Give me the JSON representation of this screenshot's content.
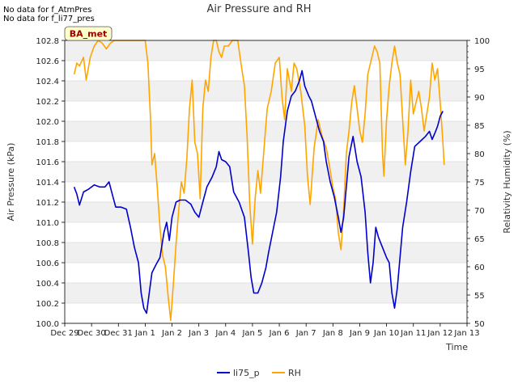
{
  "notes": [
    "No data for f_AtmPres",
    "No data for f_li77_pres"
  ],
  "chart_data": {
    "type": "line",
    "title": "Air Pressure and RH",
    "badge": "BA_met",
    "xlabel": "Time",
    "ylabel_left": "Air Pressure (kPa)",
    "ylabel_right": "Relativity Humidity (%)",
    "x_ticks": [
      "Dec 29",
      "Dec 30",
      "Dec 31",
      "Jan 1",
      "Jan 2",
      "Jan 3",
      "Jan 4",
      "Jan 5",
      "Jan 6",
      "Jan 7",
      "Jan 8",
      "Jan 9",
      "Jan 10",
      "Jan 11",
      "Jan 12",
      "Jan 13"
    ],
    "x_range": [
      0,
      15
    ],
    "ylim_left": [
      100.0,
      102.8
    ],
    "y_ticks_left": [
      "100.0",
      "100.2",
      "100.4",
      "100.6",
      "100.8",
      "101.0",
      "101.2",
      "101.4",
      "101.6",
      "101.8",
      "102.0",
      "102.2",
      "102.4",
      "102.6",
      "102.8"
    ],
    "ylim_right": [
      50,
      100
    ],
    "y_ticks_right": [
      "50",
      "55",
      "60",
      "65",
      "70",
      "75",
      "80",
      "85",
      "90",
      "95",
      "100"
    ],
    "grid": "horizontal bands",
    "legend_placement": "bottom-center",
    "series": [
      {
        "name": "li75_p",
        "axis": "left",
        "color": "#0000cc",
        "points": [
          [
            0.35,
            101.35
          ],
          [
            0.45,
            101.28
          ],
          [
            0.55,
            101.17
          ],
          [
            0.7,
            101.3
          ],
          [
            0.9,
            101.33
          ],
          [
            1.1,
            101.37
          ],
          [
            1.3,
            101.35
          ],
          [
            1.5,
            101.35
          ],
          [
            1.65,
            101.4
          ],
          [
            1.8,
            101.25
          ],
          [
            1.9,
            101.15
          ],
          [
            2.1,
            101.15
          ],
          [
            2.3,
            101.13
          ],
          [
            2.45,
            100.95
          ],
          [
            2.6,
            100.75
          ],
          [
            2.75,
            100.6
          ],
          [
            2.85,
            100.3
          ],
          [
            2.95,
            100.15
          ],
          [
            3.05,
            100.1
          ],
          [
            3.15,
            100.3
          ],
          [
            3.25,
            100.5
          ],
          [
            3.4,
            100.58
          ],
          [
            3.55,
            100.65
          ],
          [
            3.7,
            100.9
          ],
          [
            3.8,
            101.0
          ],
          [
            3.9,
            100.82
          ],
          [
            4.0,
            101.05
          ],
          [
            4.15,
            101.2
          ],
          [
            4.3,
            101.22
          ],
          [
            4.5,
            101.22
          ],
          [
            4.7,
            101.18
          ],
          [
            4.85,
            101.1
          ],
          [
            5.0,
            101.05
          ],
          [
            5.15,
            101.2
          ],
          [
            5.3,
            101.35
          ],
          [
            5.5,
            101.45
          ],
          [
            5.65,
            101.55
          ],
          [
            5.75,
            101.7
          ],
          [
            5.85,
            101.62
          ],
          [
            6.0,
            101.6
          ],
          [
            6.15,
            101.55
          ],
          [
            6.3,
            101.3
          ],
          [
            6.5,
            101.2
          ],
          [
            6.7,
            101.05
          ],
          [
            6.85,
            100.7
          ],
          [
            6.95,
            100.45
          ],
          [
            7.05,
            100.3
          ],
          [
            7.2,
            100.3
          ],
          [
            7.35,
            100.4
          ],
          [
            7.5,
            100.55
          ],
          [
            7.6,
            100.7
          ],
          [
            7.75,
            100.9
          ],
          [
            7.9,
            101.1
          ],
          [
            8.05,
            101.45
          ],
          [
            8.15,
            101.8
          ],
          [
            8.3,
            102.1
          ],
          [
            8.45,
            102.25
          ],
          [
            8.6,
            102.3
          ],
          [
            8.75,
            102.4
          ],
          [
            8.85,
            102.5
          ],
          [
            8.95,
            102.35
          ],
          [
            9.1,
            102.25
          ],
          [
            9.2,
            102.2
          ],
          [
            9.35,
            102.05
          ],
          [
            9.5,
            101.9
          ],
          [
            9.65,
            101.8
          ],
          [
            9.75,
            101.6
          ],
          [
            9.9,
            101.4
          ],
          [
            10.05,
            101.25
          ],
          [
            10.2,
            101.05
          ],
          [
            10.3,
            100.9
          ],
          [
            10.4,
            101.05
          ],
          [
            10.5,
            101.35
          ],
          [
            10.6,
            101.65
          ],
          [
            10.75,
            101.85
          ],
          [
            10.9,
            101.6
          ],
          [
            11.05,
            101.45
          ],
          [
            11.2,
            101.1
          ],
          [
            11.3,
            100.7
          ],
          [
            11.4,
            100.4
          ],
          [
            11.5,
            100.6
          ],
          [
            11.6,
            100.95
          ],
          [
            11.7,
            100.85
          ],
          [
            11.85,
            100.75
          ],
          [
            12.0,
            100.65
          ],
          [
            12.1,
            100.6
          ],
          [
            12.2,
            100.3
          ],
          [
            12.3,
            100.15
          ],
          [
            12.4,
            100.35
          ],
          [
            12.5,
            100.65
          ],
          [
            12.6,
            100.95
          ],
          [
            12.75,
            101.2
          ],
          [
            12.9,
            101.5
          ],
          [
            13.05,
            101.75
          ],
          [
            13.25,
            101.8
          ],
          [
            13.45,
            101.85
          ],
          [
            13.6,
            101.9
          ],
          [
            13.7,
            101.82
          ],
          [
            13.8,
            101.88
          ],
          [
            13.9,
            101.95
          ],
          [
            14.0,
            102.05
          ],
          [
            14.1,
            102.1
          ]
        ]
      },
      {
        "name": "RH",
        "axis": "right",
        "color": "#ffa500",
        "points": [
          [
            0.35,
            94
          ],
          [
            0.45,
            96
          ],
          [
            0.55,
            95.5
          ],
          [
            0.7,
            97
          ],
          [
            0.8,
            93
          ],
          [
            0.95,
            97
          ],
          [
            1.1,
            99
          ],
          [
            1.25,
            100
          ],
          [
            1.4,
            99.5
          ],
          [
            1.55,
            98.5
          ],
          [
            1.7,
            99.5
          ],
          [
            1.85,
            100
          ],
          [
            2.1,
            100
          ],
          [
            2.4,
            100
          ],
          [
            2.7,
            100
          ],
          [
            3.0,
            100
          ],
          [
            3.1,
            96
          ],
          [
            3.2,
            86
          ],
          [
            3.25,
            78
          ],
          [
            3.35,
            80
          ],
          [
            3.45,
            74
          ],
          [
            3.55,
            67
          ],
          [
            3.65,
            62
          ],
          [
            3.75,
            60
          ],
          [
            3.85,
            55
          ],
          [
            3.95,
            50.5
          ],
          [
            4.05,
            57
          ],
          [
            4.15,
            64
          ],
          [
            4.25,
            70
          ],
          [
            4.35,
            75
          ],
          [
            4.45,
            73
          ],
          [
            4.55,
            79
          ],
          [
            4.65,
            88
          ],
          [
            4.75,
            93
          ],
          [
            4.85,
            82
          ],
          [
            4.95,
            80
          ],
          [
            5.05,
            72
          ],
          [
            5.15,
            88
          ],
          [
            5.25,
            93
          ],
          [
            5.35,
            91
          ],
          [
            5.45,
            97
          ],
          [
            5.55,
            100
          ],
          [
            5.65,
            100
          ],
          [
            5.75,
            98
          ],
          [
            5.85,
            97
          ],
          [
            5.95,
            99
          ],
          [
            6.1,
            99
          ],
          [
            6.25,
            100
          ],
          [
            6.45,
            100
          ],
          [
            6.6,
            95
          ],
          [
            6.7,
            92
          ],
          [
            6.8,
            83
          ],
          [
            6.9,
            71
          ],
          [
            7.0,
            64
          ],
          [
            7.1,
            72
          ],
          [
            7.2,
            77
          ],
          [
            7.3,
            73
          ],
          [
            7.45,
            82
          ],
          [
            7.55,
            88
          ],
          [
            7.7,
            91
          ],
          [
            7.85,
            96
          ],
          [
            8.0,
            97
          ],
          [
            8.1,
            90
          ],
          [
            8.2,
            86
          ],
          [
            8.3,
            95
          ],
          [
            8.45,
            91
          ],
          [
            8.55,
            96
          ],
          [
            8.65,
            95
          ],
          [
            8.8,
            91
          ],
          [
            8.95,
            85
          ],
          [
            9.05,
            76
          ],
          [
            9.15,
            71
          ],
          [
            9.3,
            81
          ],
          [
            9.45,
            86
          ],
          [
            9.6,
            83
          ],
          [
            9.75,
            81
          ],
          [
            9.9,
            77
          ],
          [
            10.0,
            74
          ],
          [
            10.1,
            72
          ],
          [
            10.2,
            66
          ],
          [
            10.3,
            63
          ],
          [
            10.4,
            70
          ],
          [
            10.5,
            80
          ],
          [
            10.6,
            84
          ],
          [
            10.7,
            89
          ],
          [
            10.8,
            92
          ],
          [
            10.9,
            88
          ],
          [
            11.0,
            84
          ],
          [
            11.1,
            82
          ],
          [
            11.2,
            87
          ],
          [
            11.3,
            94
          ],
          [
            11.45,
            97
          ],
          [
            11.55,
            99
          ],
          [
            11.65,
            98
          ],
          [
            11.75,
            96
          ],
          [
            11.85,
            80
          ],
          [
            11.9,
            76
          ],
          [
            12.0,
            86
          ],
          [
            12.1,
            92
          ],
          [
            12.2,
            96
          ],
          [
            12.3,
            99
          ],
          [
            12.4,
            96
          ],
          [
            12.5,
            94
          ],
          [
            12.6,
            86
          ],
          [
            12.7,
            78
          ],
          [
            12.8,
            84
          ],
          [
            12.9,
            93
          ],
          [
            13.0,
            87
          ],
          [
            13.1,
            89
          ],
          [
            13.2,
            91
          ],
          [
            13.3,
            88
          ],
          [
            13.4,
            84
          ],
          [
            13.5,
            87
          ],
          [
            13.6,
            90
          ],
          [
            13.7,
            96
          ],
          [
            13.8,
            93
          ],
          [
            13.9,
            95
          ],
          [
            14.0,
            89
          ],
          [
            14.1,
            82
          ],
          [
            14.15,
            78
          ]
        ]
      }
    ]
  }
}
